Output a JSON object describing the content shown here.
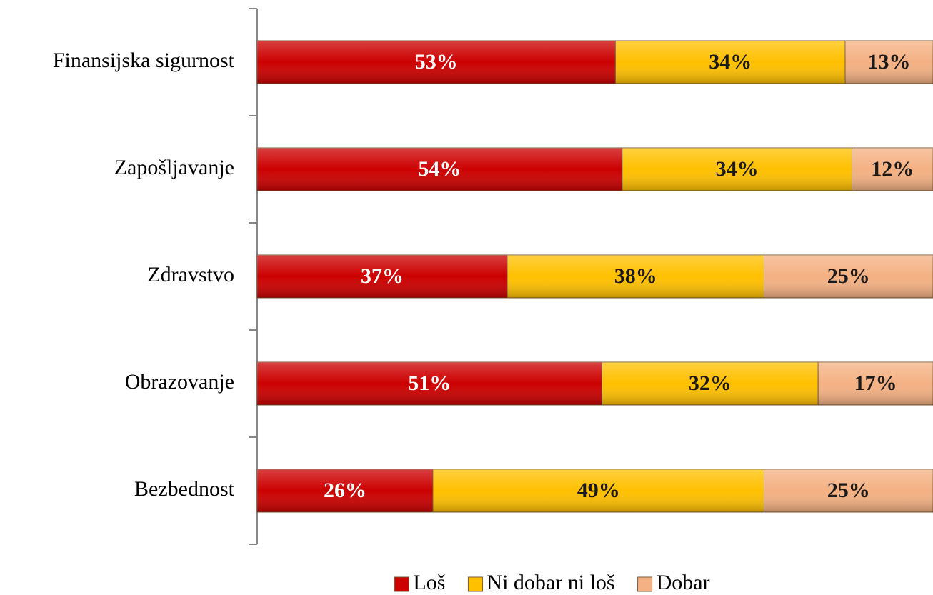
{
  "chart_data": {
    "type": "stacked-barh",
    "categories": [
      "Finansijska sigurnost",
      "Zapošljavanje",
      "Zdravstvo",
      "Obrazovanje",
      "Bezbednost"
    ],
    "series": [
      {
        "name": "Loš",
        "color": "#cc0000",
        "label_color": "#ffffff",
        "values": [
          53,
          54,
          37,
          51,
          26
        ],
        "value_labels": [
          "53%",
          "54%",
          "37%",
          "51%",
          "26%"
        ]
      },
      {
        "name": "Ni dobar ni loš",
        "color": "#ffc000",
        "label_color": "#1a1a1a",
        "values": [
          34,
          34,
          38,
          32,
          49
        ],
        "value_labels": [
          "34%",
          "34%",
          "38%",
          "32%",
          "49%"
        ]
      },
      {
        "name": "Dobar",
        "color": "#f4b183",
        "label_color": "#1a1a1a",
        "values": [
          13,
          12,
          25,
          17,
          25
        ],
        "value_labels": [
          "13%",
          "12%",
          "25%",
          "17%",
          "25%"
        ]
      }
    ],
    "xlim": [
      0,
      100
    ],
    "legend": "bottom"
  }
}
